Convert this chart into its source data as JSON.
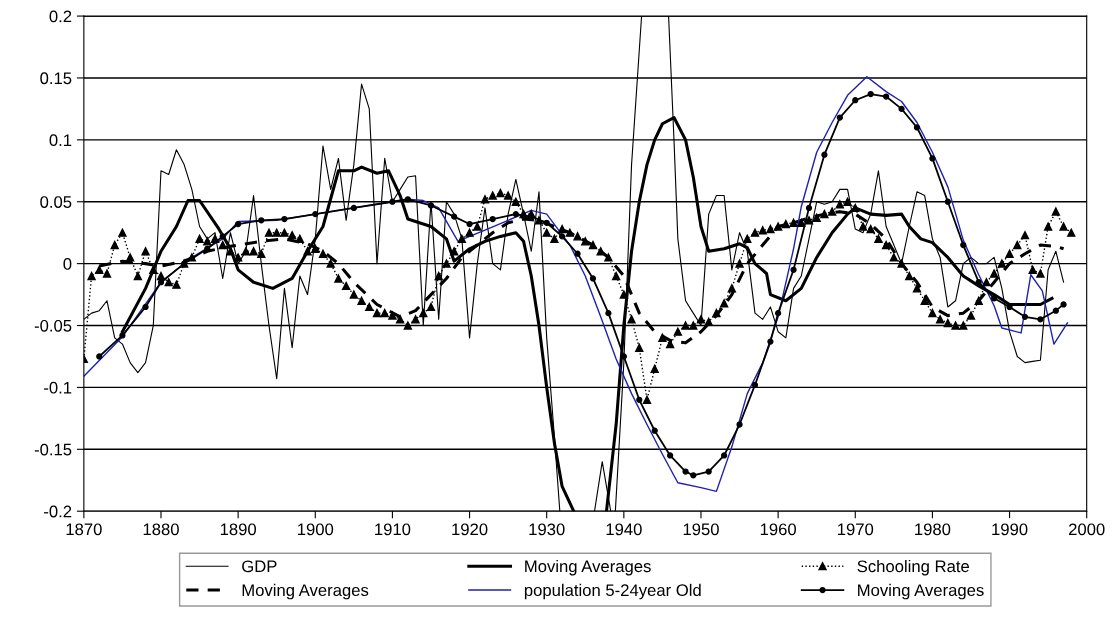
{
  "chart_data": {
    "type": "line",
    "xlim": [
      1870,
      2000
    ],
    "xticks": [
      1870,
      1880,
      1890,
      1900,
      1910,
      1920,
      1930,
      1940,
      1950,
      1960,
      1970,
      1980,
      1990,
      2000
    ],
    "ylim": [
      -0.2,
      0.2
    ],
    "yticks": [
      -0.2,
      -0.15,
      -0.1,
      -0.05,
      0,
      0.05,
      0.1,
      0.15,
      0.2
    ],
    "grid": "y",
    "legend": "bottom",
    "series": [
      {
        "name": "GDP",
        "color": "#000000",
        "line_style": "solid",
        "marker": "none",
        "x": [
          1870,
          1871,
          1872,
          1873,
          1874,
          1875,
          1876,
          1877,
          1878,
          1879,
          1880,
          1881,
          1882,
          1883,
          1884,
          1885,
          1886,
          1887,
          1888,
          1889,
          1890,
          1891,
          1892,
          1893,
          1894,
          1895,
          1896,
          1897,
          1898,
          1899,
          1900,
          1901,
          1902,
          1903,
          1904,
          1905,
          1906,
          1907,
          1908,
          1909,
          1910,
          1911,
          1912,
          1913,
          1914,
          1915,
          1916,
          1917,
          1918,
          1919,
          1920,
          1921,
          1922,
          1923,
          1924,
          1925,
          1926,
          1927,
          1928,
          1929,
          1930,
          1931,
          1931.7,
          1934,
          1936.2,
          1937.2,
          1938.3,
          1938.6,
          1938.9,
          1940,
          1941,
          1942.3,
          1944,
          1945.8,
          1946.5,
          1947,
          1948,
          1949,
          1950,
          1951,
          1952,
          1953,
          1954,
          1955,
          1956,
          1957,
          1958,
          1959,
          1960,
          1961,
          1962,
          1963,
          1964,
          1965,
          1966,
          1967,
          1968,
          1969,
          1970,
          1971,
          1972,
          1973,
          1974,
          1975,
          1976,
          1977,
          1978,
          1979,
          1980,
          1981,
          1982,
          1983,
          1984,
          1985,
          1986,
          1987,
          1988,
          1989,
          1990,
          1991,
          1992,
          1993,
          1994,
          1995,
          1996,
          1997
        ],
        "values": [
          -0.045,
          -0.04,
          -0.038,
          -0.03,
          -0.06,
          -0.065,
          -0.08,
          -0.088,
          -0.08,
          -0.05,
          0.075,
          0.072,
          0.092,
          0.08,
          0.06,
          0.03,
          0.02,
          0.025,
          -0.012,
          0.025,
          0,
          0.01,
          0.055,
          0,
          -0.05,
          -0.093,
          -0.02,
          -0.068,
          -0.01,
          -0.025,
          0.02,
          0.095,
          0.06,
          0.085,
          0.035,
          0.08,
          0.145,
          0.125,
          0,
          0.085,
          0.05,
          0.06,
          0.07,
          0.071,
          -0.05,
          0.05,
          -0.045,
          0.05,
          0.04,
          0.02,
          -0.06,
          0,
          0.045,
          0,
          -0.005,
          0.04,
          0.068,
          0.04,
          0.01,
          0.058,
          -0.06,
          -0.14,
          -0.2,
          null,
          -0.2,
          -0.16,
          -0.2,
          null,
          -0.2,
          -0.08,
          0.08,
          0.2,
          null,
          0.2,
          0.1,
          0.02,
          -0.03,
          -0.04,
          -0.05,
          0.04,
          0.055,
          0.055,
          -0.005,
          0.025,
          0.01,
          -0.04,
          -0.045,
          -0.035,
          -0.055,
          -0.06,
          -0.02,
          -0.01,
          0.02,
          0.05,
          0.048,
          0.05,
          0.06,
          0.06,
          0.028,
          0.025,
          0.04,
          0.075,
          0.03,
          0.015,
          0,
          0.03,
          0.058,
          0.055,
          0.02,
          0.005,
          -0.035,
          -0.03,
          0,
          0.005,
          0,
          0,
          0.005,
          -0.02,
          -0.055,
          -0.075,
          -0.08,
          -0.079,
          -0.078,
          -0.005,
          0.01,
          -0.015
        ]
      },
      {
        "name": "Moving Averages",
        "color": "#000000",
        "line_style": "dashed",
        "marker": "none",
        "x": [
          1872,
          1875,
          1878,
          1880,
          1883,
          1886,
          1889,
          1893,
          1896,
          1899,
          1901,
          1903,
          1905,
          1908,
          1911,
          1913,
          1915,
          1917,
          1919,
          1921,
          1923,
          1925,
          1927,
          1929,
          1931,
          1933,
          1936,
          1938,
          1940,
          1942,
          1944,
          1946,
          1948,
          1950,
          1952,
          1954,
          1956,
          1958,
          1960,
          1962,
          1964,
          1966,
          1968,
          1970,
          1972,
          1974,
          1976,
          1978,
          1980,
          1982,
          1984,
          1986,
          1988,
          1990,
          1992,
          1994,
          1996,
          1997
        ],
        "values": [
          -0.002,
          0.002,
          0,
          -0.002,
          0.002,
          0.01,
          0.014,
          0.018,
          0.02,
          0.016,
          0.01,
          0,
          -0.015,
          -0.033,
          -0.043,
          -0.038,
          -0.025,
          -0.012,
          0.005,
          0.015,
          0.025,
          0.033,
          0.036,
          0.035,
          0.03,
          0.025,
          0.015,
          0.005,
          -0.01,
          -0.04,
          -0.055,
          -0.062,
          -0.064,
          -0.055,
          -0.042,
          -0.025,
          0,
          0.015,
          0.03,
          0.033,
          0.037,
          0.04,
          0.042,
          0.04,
          0.032,
          0.02,
          0,
          -0.015,
          -0.035,
          -0.042,
          -0.04,
          -0.03,
          -0.015,
          0,
          0.008,
          0.015,
          0.014,
          0.012
        ]
      },
      {
        "name": "Moving Averages",
        "color": "#000000",
        "line_style": "solid",
        "marker": "none",
        "x": [
          1875,
          1878,
          1880,
          1882,
          1883.5,
          1885,
          1887.5,
          1889,
          1890,
          1892,
          1894.5,
          1897,
          1899,
          1901,
          1903,
          1905,
          1906,
          1908,
          1909.5,
          1911,
          1912,
          1915,
          1917,
          1918,
          1920,
          1922,
          1924,
          1926,
          1927,
          1928,
          1929,
          1930,
          1931,
          1932,
          1933.5,
          1935.5,
          1937.75,
          1939,
          1940,
          1941,
          1942,
          1943,
          1944,
          1945,
          1946.5,
          1948,
          1949,
          1950,
          1951,
          1953,
          1955,
          1956,
          1957,
          1958.5,
          1959,
          1961,
          1963,
          1965,
          1967,
          1969,
          1970,
          1972,
          1974,
          1976,
          1977,
          1978.5,
          1980,
          1982,
          1984,
          1986,
          1988,
          1990,
          1992,
          1994,
          1995.5
        ],
        "values": [
          -0.055,
          -0.02,
          0.01,
          0.03,
          0.051,
          0.051,
          0.028,
          0.012,
          -0.005,
          -0.015,
          -0.02,
          -0.012,
          0.01,
          0.03,
          0.075,
          0.075,
          0.078,
          0.073,
          0.075,
          0.055,
          0.036,
          0.03,
          0.02,
          0.002,
          0.012,
          0.018,
          0.022,
          0.025,
          0.018,
          -0.01,
          -0.05,
          -0.1,
          -0.145,
          -0.18,
          -0.2,
          null,
          -0.2,
          -0.13,
          -0.05,
          0.01,
          0.05,
          0.08,
          0.1,
          0.113,
          0.118,
          0.1,
          0.07,
          0.03,
          0.01,
          0.012,
          0.016,
          0.013,
          0,
          -0.008,
          -0.025,
          -0.03,
          -0.02,
          0.005,
          0.025,
          0.04,
          0.045,
          0.04,
          0.039,
          0.04,
          0.03,
          0.02,
          0.017,
          0.005,
          -0.01,
          -0.018,
          -0.025,
          -0.033,
          -0.033,
          -0.033,
          -0.028
        ]
      },
      {
        "name": "population 5-24year Old",
        "color": "#2020b0",
        "line_style": "solid",
        "marker": "none",
        "x": [
          1870,
          1875,
          1880,
          1884,
          1888,
          1890,
          1895,
          1900,
          1905,
          1910,
          1912,
          1914,
          1916,
          1918.5,
          1920,
          1922,
          1925,
          1928,
          1930,
          1933,
          1935,
          1937,
          1939,
          1941,
          1943,
          1945,
          1947,
          1950,
          1952,
          1954,
          1956,
          1958,
          1960,
          1962,
          1963,
          1965,
          1967,
          1969,
          1971.5,
          1974,
          1976,
          1978,
          1980,
          1982,
          1984,
          1986,
          1988,
          1989,
          1991.5,
          1992.75,
          1994.25,
          1995.75,
          1997.5
        ],
        "values": [
          -0.091,
          -0.059,
          -0.015,
          0.005,
          0.02,
          0.034,
          0.035,
          0.04,
          0.045,
          0.05,
          0.052,
          0.051,
          0.045,
          0.018,
          0.022,
          0.027,
          0.035,
          0.043,
          0.04,
          0.015,
          -0.01,
          -0.043,
          -0.077,
          -0.105,
          -0.13,
          -0.154,
          -0.177,
          -0.181,
          -0.184,
          -0.148,
          -0.105,
          -0.08,
          -0.043,
          0.012,
          0.046,
          0.09,
          0.114,
          0.136,
          0.151,
          0.139,
          0.131,
          0.114,
          0.09,
          0.062,
          0.019,
          -0.009,
          -0.034,
          -0.052,
          -0.056,
          -0.009,
          -0.022,
          -0.065,
          -0.048
        ]
      },
      {
        "name": "Schooling Rate",
        "color": "#000000",
        "line_style": "dotted",
        "marker": "triangle",
        "x": [
          1870,
          1871,
          1872,
          1873,
          1874,
          1875,
          1876,
          1877,
          1878,
          1879,
          1880,
          1881,
          1882,
          1883,
          1884,
          1885,
          1886,
          1887,
          1888,
          1889,
          1890,
          1891,
          1892,
          1893,
          1894,
          1895,
          1896,
          1897,
          1898,
          1899,
          1900,
          1901,
          1902,
          1903,
          1904,
          1905,
          1906,
          1907,
          1908,
          1909,
          1910,
          1911,
          1912,
          1913,
          1914,
          1915,
          1916,
          1917,
          1918,
          1919,
          1920,
          1921,
          1922,
          1923,
          1924,
          1925,
          1926,
          1927,
          1928,
          1929,
          1930,
          1931,
          1932,
          1933,
          1934,
          1935,
          1936,
          1937,
          1938,
          1939,
          1940,
          1941,
          1942,
          1943,
          1944,
          1945,
          1946,
          1947,
          1948,
          1949,
          1950,
          1951,
          1952,
          1953,
          1954,
          1955,
          1956,
          1957,
          1958,
          1959,
          1960,
          1961,
          1962,
          1963,
          1964,
          1965,
          1966,
          1967,
          1968,
          1969,
          1970,
          1971,
          1972,
          1973,
          1974,
          1975,
          1976,
          1977,
          1978,
          1979,
          1980,
          1981,
          1982,
          1983,
          1984,
          1985,
          1986,
          1987,
          1988,
          1989,
          1990,
          1991,
          1992,
          1993,
          1994,
          1995,
          1996,
          1997,
          1998
        ],
        "values": [
          -0.077,
          -0.01,
          -0.005,
          -0.008,
          0.015,
          0.025,
          0.005,
          -0.01,
          0.01,
          -0.005,
          -0.01,
          -0.015,
          -0.017,
          0,
          0.005,
          0.02,
          0.018,
          0.02,
          0.015,
          0.01,
          0.005,
          0.01,
          0.01,
          0.008,
          0.025,
          0.025,
          0.025,
          0.023,
          0.02,
          0.01,
          0.012,
          0.008,
          0,
          -0.012,
          -0.018,
          -0.025,
          -0.03,
          -0.035,
          -0.04,
          -0.04,
          -0.042,
          -0.045,
          -0.05,
          -0.045,
          -0.04,
          -0.035,
          -0.01,
          0,
          0.01,
          0.02,
          0.025,
          0.03,
          0.052,
          0.055,
          0.057,
          0.055,
          0.05,
          0.04,
          0.04,
          0.035,
          0.025,
          0.02,
          0.028,
          0.025,
          0.022,
          0.018,
          0.015,
          0.01,
          0.005,
          -0.01,
          -0.025,
          -0.045,
          -0.068,
          -0.11,
          -0.085,
          -0.06,
          -0.065,
          -0.055,
          -0.05,
          -0.05,
          -0.045,
          -0.047,
          -0.04,
          -0.032,
          -0.02,
          0,
          0.02,
          0.025,
          0.027,
          0.028,
          0.03,
          0.032,
          0.033,
          0.033,
          0.035,
          0.037,
          0.04,
          0.042,
          0.048,
          0.05,
          0.045,
          0.03,
          0.028,
          0.02,
          0.015,
          0.005,
          0,
          -0.01,
          -0.02,
          -0.03,
          -0.04,
          -0.045,
          -0.048,
          -0.05,
          -0.05,
          -0.042,
          -0.03,
          -0.015,
          -0.008,
          0,
          0.008,
          0.015,
          0.023,
          -0.005,
          -0.008,
          0.03,
          0.042,
          0.03,
          0.025
        ]
      },
      {
        "name": "Moving Averages",
        "color": "#000000",
        "line_style": "solid",
        "marker": "circle",
        "x": [
          1872,
          1875,
          1878,
          1880,
          1883,
          1886,
          1888,
          1890,
          1893,
          1896,
          1900,
          1905,
          1910,
          1912,
          1915,
          1918,
          1920,
          1923,
          1926,
          1928,
          1930,
          1932,
          1934,
          1936,
          1938,
          1940,
          1942,
          1944,
          1946,
          1948,
          1949,
          1951,
          1953,
          1955,
          1957,
          1959,
          1960,
          1962,
          1964,
          1966,
          1968,
          1970,
          1972,
          1974,
          1976,
          1978,
          1980,
          1982,
          1984,
          1986,
          1988,
          1990,
          1992,
          1994,
          1996,
          1997
        ],
        "values": [
          -0.075,
          -0.058,
          -0.035,
          -0.015,
          0,
          0.012,
          0.022,
          0.032,
          0.035,
          0.036,
          0.04,
          0.045,
          0.05,
          0.052,
          0.047,
          0.038,
          0.032,
          0.036,
          0.04,
          0.038,
          0.033,
          0.022,
          0.008,
          -0.012,
          -0.04,
          -0.075,
          -0.11,
          -0.135,
          -0.155,
          -0.168,
          -0.171,
          -0.168,
          -0.155,
          -0.13,
          -0.098,
          -0.063,
          -0.04,
          -0.005,
          0.045,
          0.088,
          0.118,
          0.132,
          0.137,
          0.135,
          0.125,
          0.11,
          0.085,
          0.05,
          0.015,
          -0.015,
          -0.028,
          -0.035,
          -0.043,
          -0.045,
          -0.038,
          -0.033
        ]
      }
    ]
  }
}
